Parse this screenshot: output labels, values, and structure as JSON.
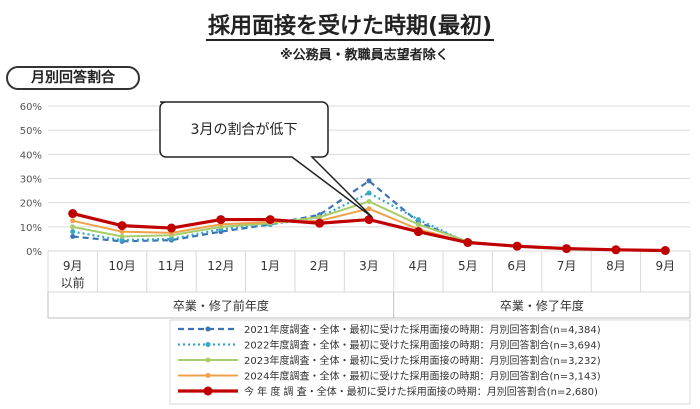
{
  "title": "採用面接を受けた時期(最初)",
  "subtitle": "※公務員・教職員志望者除く",
  "badge": "月別回答割合",
  "callout": "3月の割合が低下",
  "colors": {
    "s2021": "#3c73b5",
    "s2022": "#36a6c7",
    "s2023": "#a9cc6a",
    "s2024": "#f0a04b",
    "current": "#c00000"
  },
  "chart_data": {
    "type": "line",
    "categories": [
      "9月以前",
      "10月",
      "11月",
      "12月",
      "1月",
      "2月",
      "3月",
      "4月",
      "5月",
      "6月",
      "7月",
      "8月",
      "9月"
    ],
    "category_lines": [
      [
        "9月",
        "以前"
      ],
      [
        "10月"
      ],
      [
        "11月"
      ],
      [
        "12月"
      ],
      [
        "1月"
      ],
      [
        "2月"
      ],
      [
        "3月"
      ],
      [
        "4月"
      ],
      [
        "5月"
      ],
      [
        "6月"
      ],
      [
        "7月"
      ],
      [
        "8月"
      ],
      [
        "9月"
      ]
    ],
    "group_labels": [
      {
        "label": "卒業・修了前年度",
        "from": 0,
        "to": 6
      },
      {
        "label": "卒業・修了年度",
        "from": 7,
        "to": 12
      }
    ],
    "ylim": [
      0,
      60
    ],
    "yticks": [
      "0%",
      "10%",
      "20%",
      "30%",
      "40%",
      "50%",
      "60%"
    ],
    "ytick_values": [
      0,
      10,
      20,
      30,
      40,
      50,
      60
    ],
    "series": [
      {
        "name": "2021年度調査・全体・最初に受けた採用面接の時期：月別回答割合(n=4,384)",
        "color_key": "s2021",
        "style": "dashed",
        "values": [
          6,
          4,
          4.5,
          8,
          11,
          15,
          29,
          12,
          3.5,
          1.8,
          0.8,
          0.3,
          0.1
        ]
      },
      {
        "name": "2022年度調査・全体・最初に受けた採用面接の時期：月別回答割合(n=3,694)",
        "color_key": "s2022",
        "style": "dotted",
        "values": [
          8,
          4.5,
          5,
          9,
          11,
          14,
          24,
          13,
          3.5,
          1.8,
          0.8,
          0.3,
          0.1
        ]
      },
      {
        "name": "2023年度調査・全体・最初に受けた採用面接の時期：月別回答割合(n=3,232)",
        "color_key": "s2023",
        "style": "solid-thin",
        "values": [
          10,
          6,
          6.5,
          10,
          11.5,
          14,
          20.5,
          11,
          4,
          1.8,
          0.8,
          0.3,
          0.1
        ]
      },
      {
        "name": "2024年度調査・全体・最初に受けた採用面接の時期：月別回答割合(n=3,143)",
        "color_key": "s2024",
        "style": "solid-thin",
        "values": [
          12.5,
          8,
          7.5,
          11,
          12,
          12.5,
          17.5,
          9,
          3.5,
          1.8,
          0.8,
          0.3,
          0.1
        ]
      },
      {
        "name": "今 年 度 調 査・全体・最初に受けた採用面接の時期：月別回答割合(n=2,680)",
        "color_key": "current",
        "style": "solid-thick",
        "values": [
          15.5,
          10.5,
          9.5,
          13,
          13,
          11.5,
          13,
          8,
          3.5,
          2,
          1,
          0.5,
          0.2
        ]
      }
    ],
    "grid": "horizontal",
    "legend": "bottom"
  }
}
